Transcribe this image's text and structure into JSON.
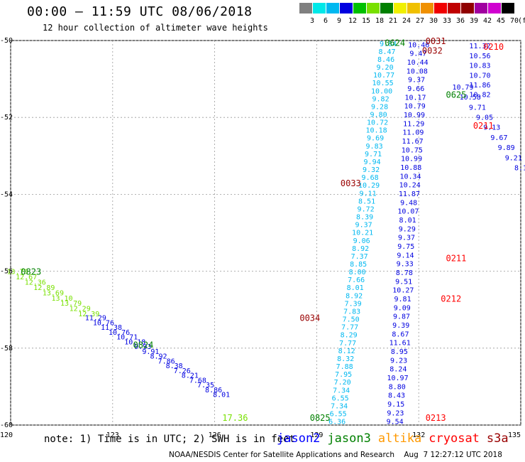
{
  "header": {
    "title": "00:00 — 11:59 UTC 08/06/2018",
    "subtitle": "12 hour collection of altimeter wave heights"
  },
  "scale": {
    "labels": [
      "3",
      "6",
      "9",
      "12",
      "15",
      "18",
      "21",
      "24",
      "27",
      "30",
      "33",
      "36",
      "39",
      "42",
      "45",
      "70",
      "(ft)"
    ],
    "colors": [
      "#808080",
      "#00e8e8",
      "#00b8f0",
      "#0000e0",
      "#00c000",
      "#78e000",
      "#008000",
      "#f0f000",
      "#f0c000",
      "#f09000",
      "#f00000",
      "#c00000",
      "#900000",
      "#a000a0",
      "#d000d0",
      "#000000"
    ]
  },
  "footer": {
    "note": "note: 1) Time is in UTC; 2) SWH is in feet",
    "credit": "NOAA/NESDIS Center for Satellite Applications and Research    Aug  7 12:27:12 UTC 2018",
    "satellites": [
      {
        "name": "jason2",
        "color": "#0000ff"
      },
      {
        "name": "jason3",
        "color": "#008000"
      },
      {
        "name": "altika",
        "color": "#ff9900"
      },
      {
        "name": "cryosat",
        "color": "#ff0000"
      },
      {
        "name": "s3a",
        "color": "#990000"
      }
    ]
  },
  "chart_data": {
    "type": "scatter",
    "xlim": [
      120,
      135
    ],
    "ylim": [
      -60,
      -50
    ],
    "x_ticks": [
      120,
      123,
      126,
      129,
      132,
      135
    ],
    "y_ticks": [
      -50,
      -52,
      -54,
      -56,
      -58,
      -60
    ],
    "grid": true,
    "colors": {
      "lc": "#00b8f0",
      "lg": "#78e000",
      "db": "#0000e0",
      "g": "#008000",
      "r": "#ff0000",
      "m": "#990000"
    },
    "tracks": [
      {
        "name": "jason3 descending",
        "color": "lc",
        "x0": 131.1,
        "y0": -50.07,
        "x1": 129.6,
        "y1": -59.9,
        "labels": [
          "9.84",
          "8.47",
          "8.46",
          "9.20",
          "10.77",
          "10.55",
          "10.00",
          "9.82",
          "9.28",
          "9.80",
          "10.72",
          "10.18",
          "9.69",
          "9.83",
          "9.71",
          "9.94",
          "9.32",
          "9.68",
          "10.29",
          "9.11",
          "8.51",
          "9.72",
          "8.39",
          "9.37",
          "10.21",
          "9.06",
          "8.92",
          "7.37",
          "8.85",
          "8.00",
          "7.66",
          "8.01",
          "8.92",
          "7.39",
          "7.83",
          "7.50",
          "7.77",
          "8.29",
          "7.77",
          "8.12",
          "8.32",
          "7.88",
          "7.95",
          "7.20",
          "7.34",
          "6.55",
          "7.34",
          "6.55",
          "6.36"
        ]
      },
      {
        "name": "jason2 ascending",
        "color": "db",
        "x0": 131.3,
        "y0": -59.9,
        "x1": 132.0,
        "y1": -50.1,
        "labels": [
          "9.54",
          "9.23",
          "9.15",
          "8.43",
          "8.80",
          "10.97",
          "8.24",
          "9.23",
          "8.95",
          "11.61",
          "8.67",
          "9.39",
          "9.87",
          "9.09",
          "9.81",
          "10.27",
          "9.51",
          "8.78",
          "9.33",
          "9.14",
          "9.75",
          "9.37",
          "9.29",
          "8.01",
          "10.07",
          "9.48",
          "11.87",
          "10.24",
          "10.34",
          "10.88",
          "10.99",
          "10.75",
          "11.67",
          "11.09",
          "11.29",
          "10.99",
          "10.79",
          "10.17",
          "9.66",
          "9.37",
          "10.08",
          "10.44",
          "9.47",
          "10.46"
        ]
      },
      {
        "name": "west track",
        "color": "lg",
        "x0": 120.2,
        "y0": -56.0,
        "x1": 122.3,
        "y1": -57.1,
        "labels": [
          "13.76",
          "12.67",
          "12.36",
          "12.89",
          "13.69",
          "13.10",
          "13.79",
          "12.29",
          "12.39"
        ]
      },
      {
        "name": "west track dark",
        "color": "db",
        "x0": 122.5,
        "y0": -57.2,
        "x1": 126.2,
        "y1": -59.2,
        "labels": [
          "11.29",
          "10.76",
          "11.38",
          "10.76",
          "10.71",
          "10.18",
          "9.93",
          "9.91",
          "8.92",
          "7.86",
          "8.38",
          "7.26",
          "8.21",
          "7.68",
          "7.35",
          "8.86",
          "8.01"
        ]
      },
      {
        "name": "northeast track",
        "color": "db",
        "x0": 133.3,
        "y0": -51.2,
        "x1": 135.0,
        "y1": -53.3,
        "labels": [
          "10.79",
          "10.58",
          "9.71",
          "9.05",
          "9.13",
          "9.67",
          "9.89",
          "9.21",
          "8.1"
        ]
      },
      {
        "name": "east column",
        "color": "db",
        "x0": 133.8,
        "y0": -50.13,
        "x1": 133.8,
        "y1": -51.4,
        "labels": [
          "11.32",
          "10.56",
          "10.83",
          "10.70",
          "11.86",
          "10.82"
        ]
      }
    ],
    "labels": [
      {
        "text": "17.36",
        "x": 126.6,
        "y": -59.8,
        "color": "lg"
      },
      {
        "text": "0624",
        "x": 131.3,
        "y": -50.05,
        "color": "g"
      },
      {
        "text": "0625",
        "x": 133.1,
        "y": -51.4,
        "color": "g"
      },
      {
        "text": "0823",
        "x": 120.6,
        "y": -56.0,
        "color": "g"
      },
      {
        "text": "0824",
        "x": 123.9,
        "y": -57.9,
        "color": "g"
      },
      {
        "text": "0825",
        "x": 129.1,
        "y": -59.8,
        "color": "g"
      },
      {
        "text": "0031",
        "x": 132.5,
        "y": -50.0,
        "color": "m"
      },
      {
        "text": "0032",
        "x": 132.4,
        "y": -50.25,
        "color": "m"
      },
      {
        "text": "0033",
        "x": 130.0,
        "y": -53.7,
        "color": "m"
      },
      {
        "text": "0034",
        "x": 128.8,
        "y": -57.2,
        "color": "m"
      },
      {
        "text": "0210",
        "x": 134.2,
        "y": -50.15,
        "color": "r"
      },
      {
        "text": "0211",
        "x": 133.9,
        "y": -52.2,
        "color": "r"
      },
      {
        "text": "0211",
        "x": 133.1,
        "y": -55.65,
        "color": "r"
      },
      {
        "text": "0212",
        "x": 132.95,
        "y": -56.7,
        "color": "r"
      },
      {
        "text": "0213",
        "x": 132.5,
        "y": -59.8,
        "color": "r"
      }
    ]
  }
}
